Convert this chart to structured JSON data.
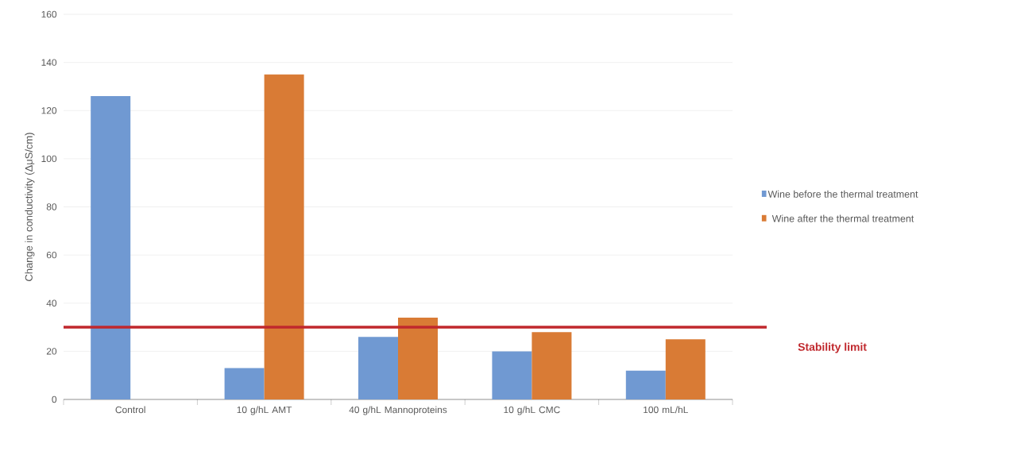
{
  "chart_data": {
    "type": "bar",
    "ylabel": "Change in conductivity (ΔμS/cm)",
    "categories": [
      "Control",
      "10 g/hL AMT",
      "40 g/hL Mannoproteins",
      "10 g/hL CMC",
      "100 mL/hL"
    ],
    "series": [
      {
        "name": "Wine before the thermal treatment",
        "color": "#7099d2",
        "values": [
          126,
          13,
          26,
          20,
          12
        ]
      },
      {
        "name": "Wine after the thermal treatment",
        "color": "#d97b35",
        "values": [
          null,
          135,
          34,
          28,
          25
        ]
      }
    ],
    "ylim": [
      0,
      160
    ],
    "yticks": [
      0,
      20,
      40,
      60,
      80,
      100,
      120,
      140,
      160
    ],
    "grid": "y",
    "legend": "right",
    "ref_lines": [
      {
        "axis": "y",
        "value": 30,
        "label": "Stability limit",
        "color": "#c0282d"
      }
    ]
  }
}
